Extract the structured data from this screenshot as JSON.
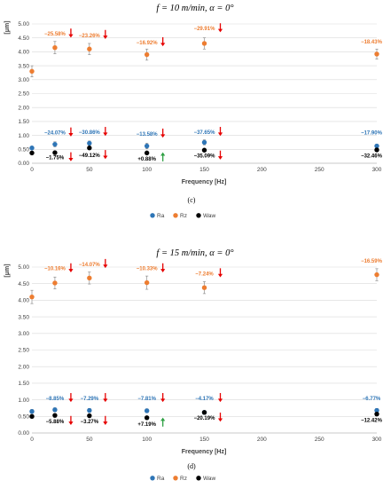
{
  "chart_data": [
    {
      "type": "scatter",
      "title": "f = 10 m/min, α = 0°",
      "caption": "(c)",
      "xlabel": "Frequency [Hz]",
      "ylabel": "[μm]",
      "xlim": [
        0,
        300
      ],
      "ylim": [
        0,
        5
      ],
      "xticks": [
        "0",
        "50",
        "100",
        "150",
        "200",
        "250",
        "300"
      ],
      "yticks": [
        "0.00",
        "0.50",
        "1.00",
        "1.50",
        "2.00",
        "2.50",
        "3.00",
        "3.50",
        "4.00",
        "4.50",
        "5.00"
      ],
      "grid": true,
      "legend_position": "bottom",
      "x": [
        0,
        20,
        50,
        100,
        150,
        300
      ],
      "series": [
        {
          "name": "Ra",
          "color": "#2e75b6",
          "values": [
            0.55,
            0.68,
            0.72,
            0.62,
            0.75,
            0.62
          ],
          "errors": [
            0.06,
            0.09,
            0.08,
            0.1,
            0.09,
            0.06
          ]
        },
        {
          "name": "Rz",
          "color": "#ed7d31",
          "values": [
            3.3,
            4.15,
            4.1,
            3.9,
            4.3,
            3.92
          ],
          "errors": [
            0.2,
            0.22,
            0.2,
            0.2,
            0.2,
            0.18
          ]
        },
        {
          "name": "Waw",
          "color": "#000000",
          "values": [
            0.37,
            0.38,
            0.55,
            0.37,
            0.47,
            0.48
          ],
          "errors": [
            0.04,
            0.04,
            0.05,
            0.04,
            0.04,
            0.04
          ]
        }
      ],
      "annotations": [
        {
          "text": "−25.58%",
          "x": 20,
          "y": 4.58,
          "color": "#ed7d31",
          "arrow": "down",
          "arrow_color": "#e60000"
        },
        {
          "text": "−23.26%",
          "x": 50,
          "y": 4.53,
          "color": "#ed7d31",
          "arrow": "down",
          "arrow_color": "#e60000"
        },
        {
          "text": "−16.92%",
          "x": 100,
          "y": 4.27,
          "color": "#ed7d31",
          "arrow": "down",
          "arrow_color": "#e60000"
        },
        {
          "text": "−29.91%",
          "x": 150,
          "y": 4.77,
          "color": "#ed7d31",
          "arrow": "down",
          "arrow_color": "#e60000"
        },
        {
          "text": "−18.43%",
          "x": 300,
          "y": 4.3,
          "color": "#ed7d31",
          "arrow": "down",
          "arrow_color": "#e60000"
        },
        {
          "text": "−24.07%",
          "x": 20,
          "y": 1.03,
          "color": "#2e75b6",
          "arrow": "down",
          "arrow_color": "#e60000"
        },
        {
          "text": "−30.86%",
          "x": 50,
          "y": 1.05,
          "color": "#2e75b6",
          "arrow": "down",
          "arrow_color": "#e60000"
        },
        {
          "text": "−13.58%",
          "x": 100,
          "y": 0.99,
          "color": "#2e75b6",
          "arrow": "down",
          "arrow_color": "#e60000"
        },
        {
          "text": "−37.65%",
          "x": 150,
          "y": 1.05,
          "color": "#2e75b6",
          "arrow": "down",
          "arrow_color": "#e60000"
        },
        {
          "text": "−17.90%",
          "x": 300,
          "y": 1.03,
          "color": "#2e75b6",
          "arrow": "down",
          "arrow_color": "#e60000"
        },
        {
          "text": "−1.75%",
          "x": 20,
          "y": 0.14,
          "color": "#000000",
          "arrow": "down",
          "arrow_color": "#e60000"
        },
        {
          "text": "−49.12%",
          "x": 50,
          "y": 0.22,
          "color": "#000000",
          "arrow": "down",
          "arrow_color": "#e60000"
        },
        {
          "text": "+0.88%",
          "x": 100,
          "y": 0.1,
          "color": "#000000",
          "arrow": "up",
          "arrow_color": "#2ea043"
        },
        {
          "text": "−35.09%",
          "x": 150,
          "y": 0.2,
          "color": "#000000",
          "arrow": "down",
          "arrow_color": "#e60000"
        },
        {
          "text": "−32.46%",
          "x": 300,
          "y": 0.2,
          "color": "#000000",
          "arrow": "down",
          "arrow_color": "#e60000"
        }
      ]
    },
    {
      "type": "scatter",
      "title": "f = 15 m/min, α = 0°",
      "caption": "(d)",
      "xlabel": "Frequency [Hz]",
      "ylabel": "[μm]",
      "xlim": [
        0,
        300
      ],
      "ylim": [
        0,
        5
      ],
      "xticks": [
        "0",
        "50",
        "100",
        "150",
        "200",
        "250",
        "300"
      ],
      "yticks": [
        "0.00",
        "0.50",
        "1.00",
        "1.50",
        "2.00",
        "2.50",
        "3.00",
        "3.50",
        "4.00",
        "4.50",
        "5.00"
      ],
      "grid": true,
      "legend_position": "bottom",
      "x": [
        0,
        20,
        50,
        100,
        150,
        300
      ],
      "series": [
        {
          "name": "Ra",
          "color": "#2e75b6",
          "values": [
            0.65,
            0.7,
            0.68,
            0.67,
            0.62,
            0.68
          ],
          "errors": [
            0.06,
            0.06,
            0.06,
            0.06,
            0.06,
            0.06
          ]
        },
        {
          "name": "Rz",
          "color": "#ed7d31",
          "values": [
            4.1,
            4.52,
            4.67,
            4.53,
            4.38,
            4.77
          ],
          "errors": [
            0.2,
            0.18,
            0.18,
            0.2,
            0.18,
            0.18
          ]
        },
        {
          "name": "Waw",
          "color": "#000000",
          "values": [
            0.5,
            0.53,
            0.52,
            0.46,
            0.62,
            0.57
          ],
          "errors": [
            0.04,
            0.04,
            0.04,
            0.04,
            0.04,
            0.04
          ]
        }
      ],
      "annotations": [
        {
          "text": "−10.16%",
          "x": 20,
          "y": 4.9,
          "color": "#ed7d31",
          "arrow": "down",
          "arrow_color": "#e60000"
        },
        {
          "text": "−14.07%",
          "x": 50,
          "y": 5.03,
          "color": "#ed7d31",
          "arrow": "down",
          "arrow_color": "#e60000"
        },
        {
          "text": "−10.33%",
          "x": 100,
          "y": 4.9,
          "color": "#ed7d31",
          "arrow": "down",
          "arrow_color": "#e60000"
        },
        {
          "text": "−7.24%",
          "x": 150,
          "y": 4.75,
          "color": "#ed7d31",
          "arrow": "down",
          "arrow_color": "#e60000"
        },
        {
          "text": "−16.59%",
          "x": 300,
          "y": 5.14,
          "color": "#ed7d31",
          "arrow": "down",
          "arrow_color": "#e60000"
        },
        {
          "text": "−8.85%",
          "x": 20,
          "y": 0.99,
          "color": "#2e75b6",
          "arrow": "down",
          "arrow_color": "#e60000"
        },
        {
          "text": "−7.29%",
          "x": 50,
          "y": 0.99,
          "color": "#2e75b6",
          "arrow": "down",
          "arrow_color": "#e60000"
        },
        {
          "text": "−7.81%",
          "x": 100,
          "y": 0.99,
          "color": "#2e75b6",
          "arrow": "down",
          "arrow_color": "#e60000"
        },
        {
          "text": "−4.17%",
          "x": 150,
          "y": 0.99,
          "color": "#2e75b6",
          "arrow": "down",
          "arrow_color": "#e60000"
        },
        {
          "text": "−6.77%",
          "x": 300,
          "y": 0.99,
          "color": "#2e75b6",
          "arrow": "down",
          "arrow_color": "#e60000"
        },
        {
          "text": "−5.88%",
          "x": 20,
          "y": 0.3,
          "color": "#000000",
          "arrow": "down",
          "arrow_color": "#e60000"
        },
        {
          "text": "−3.27%",
          "x": 50,
          "y": 0.3,
          "color": "#000000",
          "arrow": "down",
          "arrow_color": "#e60000"
        },
        {
          "text": "+7.19%",
          "x": 100,
          "y": 0.22,
          "color": "#000000",
          "arrow": "up",
          "arrow_color": "#2ea043"
        },
        {
          "text": "−20.19%",
          "x": 150,
          "y": 0.4,
          "color": "#000000",
          "arrow": "down",
          "arrow_color": "#e60000"
        },
        {
          "text": "−12.42%",
          "x": 300,
          "y": 0.33,
          "color": "#000000",
          "arrow": "down",
          "arrow_color": "#e60000"
        }
      ]
    }
  ]
}
